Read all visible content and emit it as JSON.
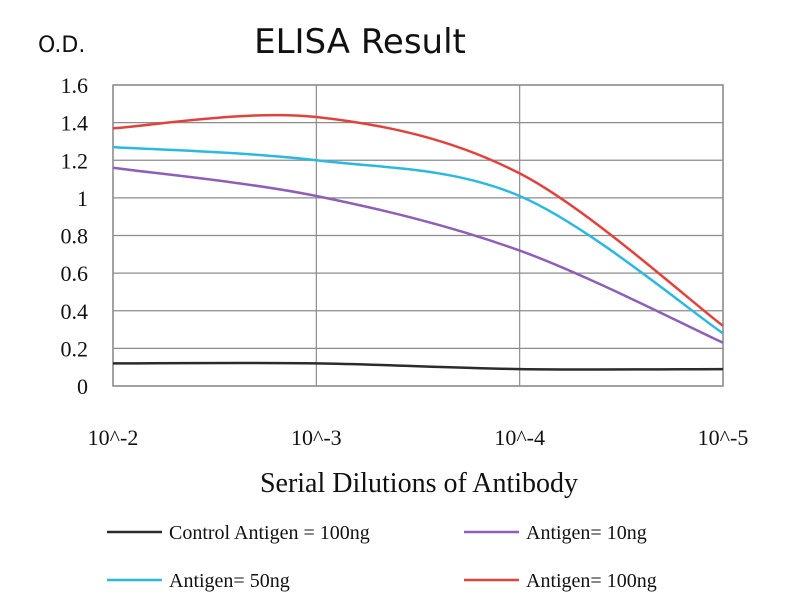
{
  "chart_data": {
    "type": "line",
    "title": "ELISA Result",
    "ylabel": "O.D.",
    "xlabel": "Serial Dilutions of Antibody",
    "x": [
      "10^-2",
      "10^-3",
      "10^-4",
      "10^-5"
    ],
    "ylim": [
      0,
      1.6
    ],
    "yticks": [
      "0",
      "0.2",
      "0.4",
      "0.6",
      "0.8",
      "1",
      "1.2",
      "1.4",
      "1.6"
    ],
    "grid": true,
    "legend_position": "bottom",
    "series": [
      {
        "name": "Control Antigen = 100ng",
        "color": "#2b2b2b",
        "values": [
          0.12,
          0.12,
          0.09,
          0.09
        ]
      },
      {
        "name": "Antigen= 10ng",
        "color": "#8e5fb8",
        "values": [
          1.16,
          1.01,
          0.72,
          0.23
        ]
      },
      {
        "name": "Antigen= 50ng",
        "color": "#2cb8df",
        "values": [
          1.27,
          1.2,
          1.01,
          0.28
        ]
      },
      {
        "name": "Antigen= 100ng",
        "color": "#e0433d",
        "values": [
          1.37,
          1.43,
          1.13,
          0.32
        ]
      }
    ]
  }
}
